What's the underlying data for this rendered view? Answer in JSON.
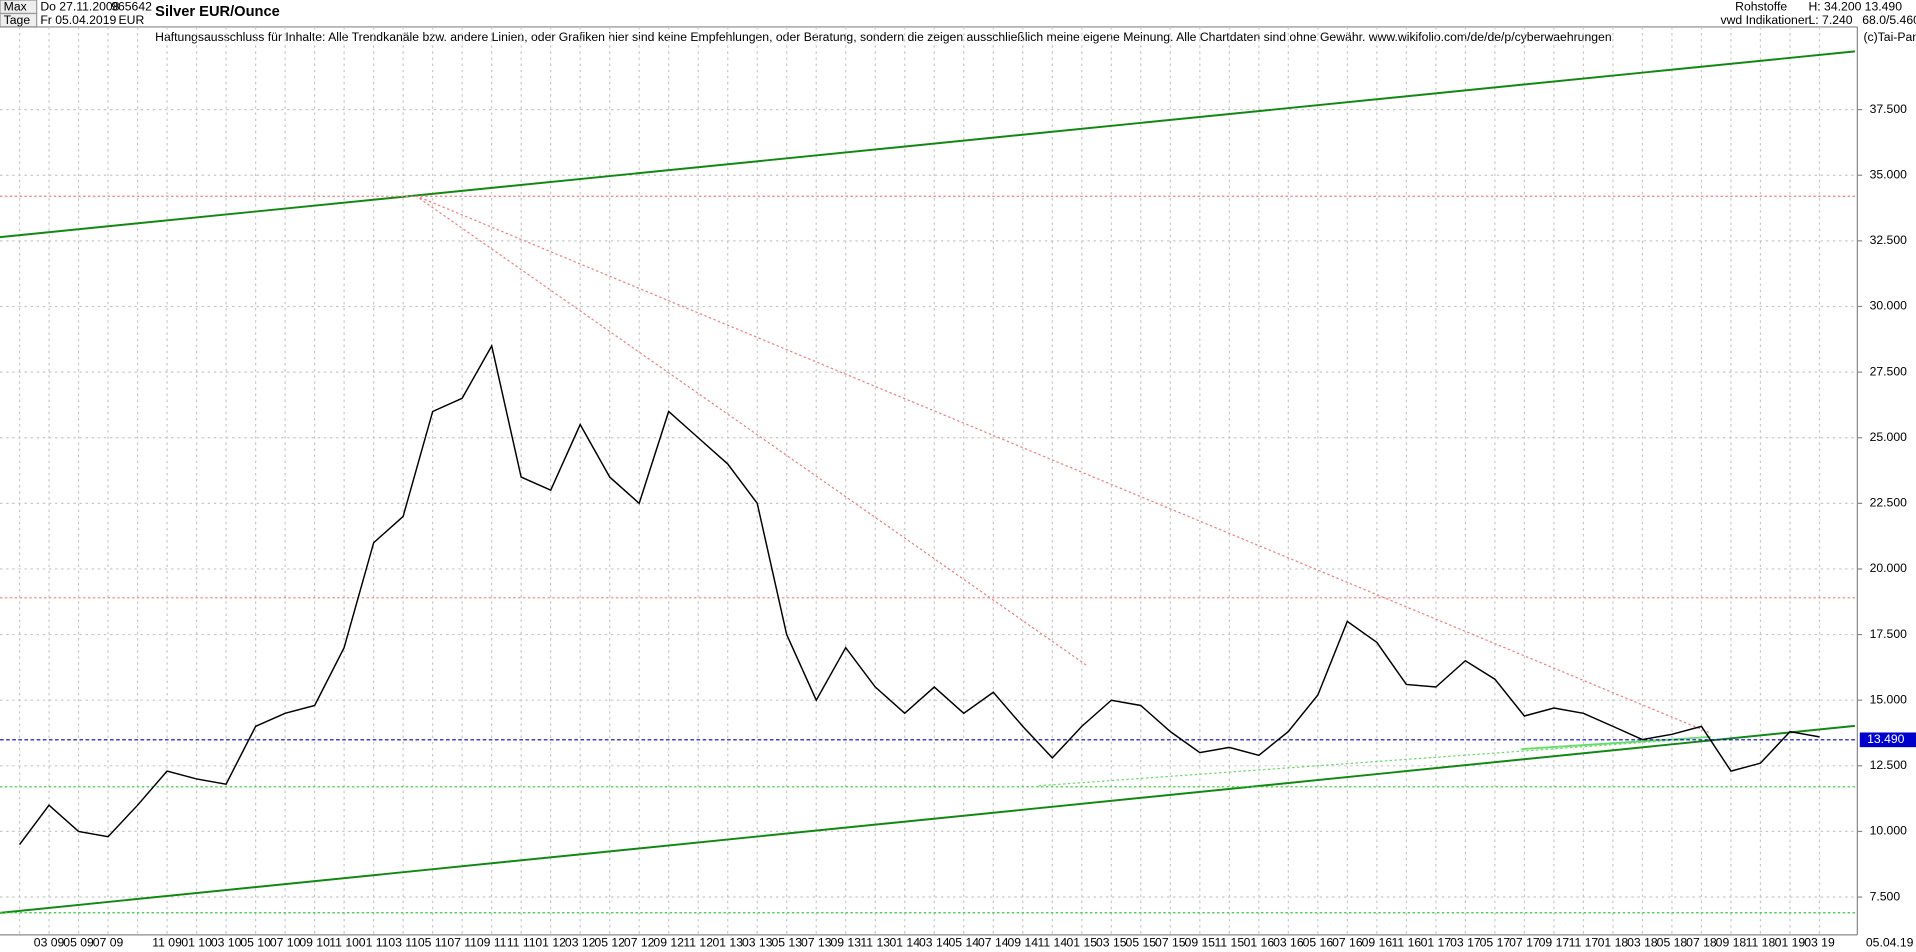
{
  "header": {
    "range": "Max",
    "period": "Tage",
    "start_date": "Do 27.11.2008",
    "end_date": "Fr 05.04.2019",
    "id": "965642",
    "currency": "EUR",
    "group": "Rohstoffe",
    "source": "vwd Indikationen",
    "high": "H: 34.200",
    "low": "L: 7.240",
    "last": "13.490",
    "ratio": "68.0/5.460",
    "copyright": "(c)Tai-Pan",
    "date_label": "05.04.19"
  },
  "chart_data": {
    "type": "line",
    "title": "Silver EUR/Ounce",
    "annotation": "Haftungsausschluss für Inhalte: Alle Trendkanäle bzw. andere Linien, oder Grafiken hier sind keine Empfehlungen, oder Beratung, sondern die zeigen ausschließlich meine eigene Meinung. Alle Chartdaten sind ohne Gewähr.  www.wikifolio.com/de/de/p/cyberwaehrungen",
    "categories": [
      null,
      "03 09",
      "05 09",
      "07 09",
      null,
      "11 09",
      "01 10",
      "03 10",
      "05 10",
      "07 10",
      "09 10",
      "11 10",
      "01 11",
      "03 11",
      "05 11",
      "07 11",
      "09 11",
      "11 11",
      "01 12",
      "03 12",
      "05 12",
      "07 12",
      "09 12",
      "11 12",
      "01 13",
      "03 13",
      "05 13",
      "07 13",
      "09 13",
      "11 13",
      "01 14",
      "03 14",
      "05 14",
      "07 14",
      "09 14",
      "11 14",
      "01 15",
      "03 15",
      "05 15",
      "07 15",
      "09 15",
      "11 15",
      "01 16",
      "03 16",
      "05 16",
      "07 16",
      "09 16",
      "11 16",
      "01 17",
      "03 17",
      "05 17",
      "07 17",
      "09 17",
      "11 17",
      "01 18",
      "03 18",
      "05 18",
      "07 18",
      "09 18",
      "11 18",
      "01 19",
      "03 19"
    ],
    "series": [
      {
        "name": "Silver EUR/Ounce",
        "color": "#000000",
        "values": [
          9.5,
          11.0,
          10.0,
          9.8,
          11.0,
          12.3,
          12.0,
          11.8,
          14.0,
          14.5,
          14.8,
          17.0,
          21.0,
          22.0,
          26.0,
          26.5,
          28.5,
          23.5,
          23.0,
          25.5,
          23.5,
          22.5,
          26.0,
          25.0,
          24.0,
          22.5,
          17.5,
          15.0,
          17.0,
          15.5,
          14.5,
          15.5,
          14.5,
          15.3,
          14.0,
          12.8,
          14.0,
          15.0,
          14.8,
          13.8,
          13.0,
          13.2,
          12.9,
          13.8,
          15.2,
          18.0,
          17.2,
          15.6,
          15.5,
          16.5,
          15.8,
          14.4,
          14.7,
          14.5,
          14.0,
          13.5,
          13.7,
          14.0,
          12.3,
          12.6,
          13.8,
          13.6
        ]
      }
    ],
    "ylim": [
      6.06,
      40.65
    ],
    "yticks": [
      {
        "value": 7.5,
        "label": "7.500"
      },
      {
        "value": 10,
        "label": "10.000"
      },
      {
        "value": 12.5,
        "label": "12.500"
      },
      {
        "value": 15,
        "label": "15.000"
      },
      {
        "value": 17.5,
        "label": "17.500"
      },
      {
        "value": 20,
        "label": "20.000"
      },
      {
        "value": 22.5,
        "label": "22.500"
      },
      {
        "value": 25,
        "label": "25.000"
      },
      {
        "value": 27.5,
        "label": "27.500"
      },
      {
        "value": 30,
        "label": "30.000"
      },
      {
        "value": 32.5,
        "label": "32.500"
      },
      {
        "value": 35,
        "label": "35.000"
      },
      {
        "value": 37.5,
        "label": "37.500"
      }
    ],
    "grid": true,
    "levels": [
      {
        "value": 34.2,
        "color": "#f08080"
      },
      {
        "value": 18.9,
        "color": "#f08080"
      },
      {
        "value": 11.7,
        "color": "#33cc33"
      },
      {
        "value": 6.9,
        "color": "#33cc33"
      }
    ],
    "last_price": {
      "value": 13.49,
      "label": "13.490",
      "color": "#0000cc"
    }
  }
}
